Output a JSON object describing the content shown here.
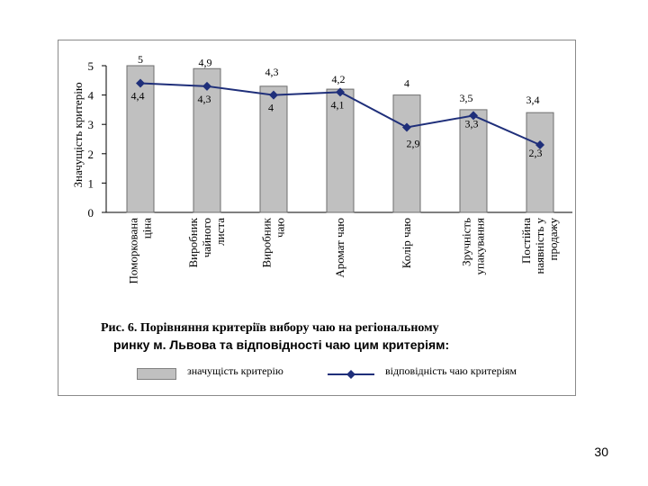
{
  "chart_data": {
    "type": "bar",
    "ylabel": "Значущість критерію",
    "ylim": [
      0,
      5
    ],
    "yticks": [
      "0",
      "1",
      "2",
      "3",
      "4",
      "5"
    ],
    "categories": [
      [
        "Поморкована",
        "ціна"
      ],
      [
        "Виробник",
        "чайного",
        "листа"
      ],
      [
        "Виробник",
        "чаю"
      ],
      [
        "Аромат чаю"
      ],
      [
        "Колір чаю"
      ],
      [
        "Зручність",
        "упакування"
      ],
      [
        "Постійна",
        "наявність у",
        "продажу"
      ]
    ],
    "series": [
      {
        "name": "значущість критерію",
        "type": "bar",
        "color": "#c0c0c0",
        "values": [
          5,
          4.9,
          4.3,
          4.2,
          4,
          3.5,
          3.4
        ],
        "labels": [
          "5",
          "4,9",
          "4,3",
          "4,2",
          "4",
          "3,5",
          "3,4"
        ]
      },
      {
        "name": "відповідність чаю критеріям",
        "type": "line",
        "color": "#1f2f7a",
        "values": [
          4.4,
          4.3,
          4,
          4.1,
          2.9,
          3.3,
          2.3
        ],
        "labels": [
          "4,4",
          "4,3",
          "4",
          "4,1",
          "2,9",
          "3,3",
          "2,3"
        ]
      }
    ],
    "legend_position": "bottom",
    "caption_line1": "Рис. 6. Порівняння критеріїв вибору чаю на регіональному",
    "caption_line2": "ринку м. Львова та відповідності чаю цим критеріям:"
  },
  "legend": {
    "bar_label": "значущість критерію",
    "line_label": "відповідність чаю критеріям"
  },
  "page_number": "30"
}
